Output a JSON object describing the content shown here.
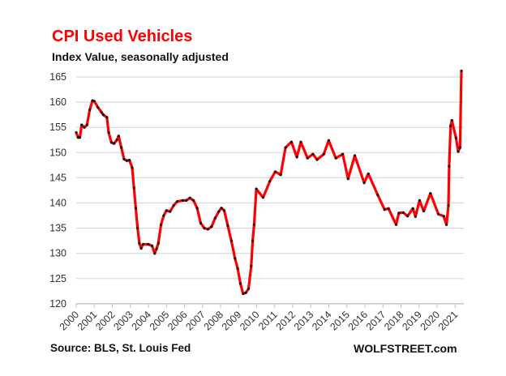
{
  "chart_data": {
    "type": "line",
    "title": "CPI Used Vehicles",
    "subtitle": "Index Value, seasonally adjusted",
    "source": "Source: BLS, St. Louis Fed",
    "brand": "WOLFSTREET.com",
    "ylim": [
      120,
      165
    ],
    "yticks": [
      120,
      125,
      130,
      135,
      140,
      145,
      150,
      155,
      160,
      165
    ],
    "xticks": [
      "2000",
      "2001",
      "2002",
      "2003",
      "2004",
      "2005",
      "2006",
      "2007",
      "2008",
      "2009",
      "2010",
      "2011",
      "2012",
      "2013",
      "2014",
      "2015",
      "2016",
      "2017",
      "2018",
      "2019",
      "2020",
      "2021"
    ],
    "grid": true,
    "colors": {
      "line": "#ff0000",
      "markers": "#111111",
      "title": "#ff0000"
    },
    "x": [
      2000.0,
      2000.1,
      2000.2,
      2000.3,
      2000.45,
      2000.6,
      2000.75,
      2000.9,
      2001.0,
      2001.2,
      2001.4,
      2001.5,
      2001.7,
      2001.8,
      2001.95,
      2002.1,
      2002.25,
      2002.35,
      2002.5,
      2002.65,
      2002.8,
      2002.95,
      2003.1,
      2003.2,
      2003.3,
      2003.4,
      2003.5,
      2003.6,
      2003.7,
      2004.0,
      2004.2,
      2004.35,
      2004.45,
      2004.55,
      2004.7,
      2004.85,
      2005.0,
      2005.2,
      2005.4,
      2005.6,
      2005.9,
      2006.1,
      2006.3,
      2006.5,
      2006.7,
      2006.9,
      2007.1,
      2007.3,
      2007.5,
      2007.7,
      2007.9,
      2008.05,
      2008.2,
      2008.4,
      2008.6,
      2008.8,
      2008.95,
      2009.1,
      2009.25,
      2009.4,
      2009.55,
      2009.7,
      2009.78,
      2009.86,
      2009.98,
      2010.36,
      2010.73,
      2011.03,
      2011.33,
      2011.6,
      2011.93,
      2012.23,
      2012.45,
      2012.82,
      2013.12,
      2013.35,
      2013.72,
      2013.99,
      2014.39,
      2014.77,
      2015.07,
      2015.44,
      2015.96,
      2016.19,
      2016.71,
      2017.09,
      2017.31,
      2017.73,
      2017.88,
      2018.13,
      2018.36,
      2018.66,
      2018.8,
      2019.03,
      2019.26,
      2019.63,
      2020.07,
      2020.37,
      2020.52,
      2020.63,
      2020.67,
      2020.75,
      2020.82,
      2021.05,
      2021.17,
      2021.27,
      2021.35
    ],
    "values": [
      154,
      153,
      153,
      155.5,
      155,
      155.5,
      158.5,
      160.3,
      160.2,
      159,
      158,
      157.5,
      157,
      154,
      152,
      151.8,
      152.5,
      153.3,
      151,
      148.7,
      148.4,
      148.5,
      147,
      143,
      139,
      135,
      132,
      131,
      131.8,
      131.8,
      131.5,
      130,
      130.9,
      132,
      135.7,
      137.5,
      138.5,
      138.3,
      139.5,
      140.3,
      140.5,
      140.5,
      141,
      140.5,
      139,
      136,
      135,
      134.8,
      135.3,
      137,
      138.3,
      139,
      138.5,
      135.5,
      132.5,
      129,
      127,
      124,
      122,
      122.2,
      123,
      127.5,
      132.5,
      135.7,
      142.8,
      141.1,
      144.3,
      146.2,
      145.6,
      151,
      152.1,
      149.1,
      152.1,
      148.9,
      149.7,
      148.6,
      149.7,
      152.4,
      148.9,
      149.7,
      144.8,
      149.4,
      144,
      145.8,
      141.6,
      138.7,
      138.9,
      135.7,
      138,
      138.1,
      137.4,
      138.9,
      137.3,
      140.5,
      138.4,
      141.9,
      137.8,
      137.4,
      135.7,
      139.5,
      147.3,
      155.3,
      156.4,
      152.9,
      150.2,
      151,
      166.2
    ]
  }
}
